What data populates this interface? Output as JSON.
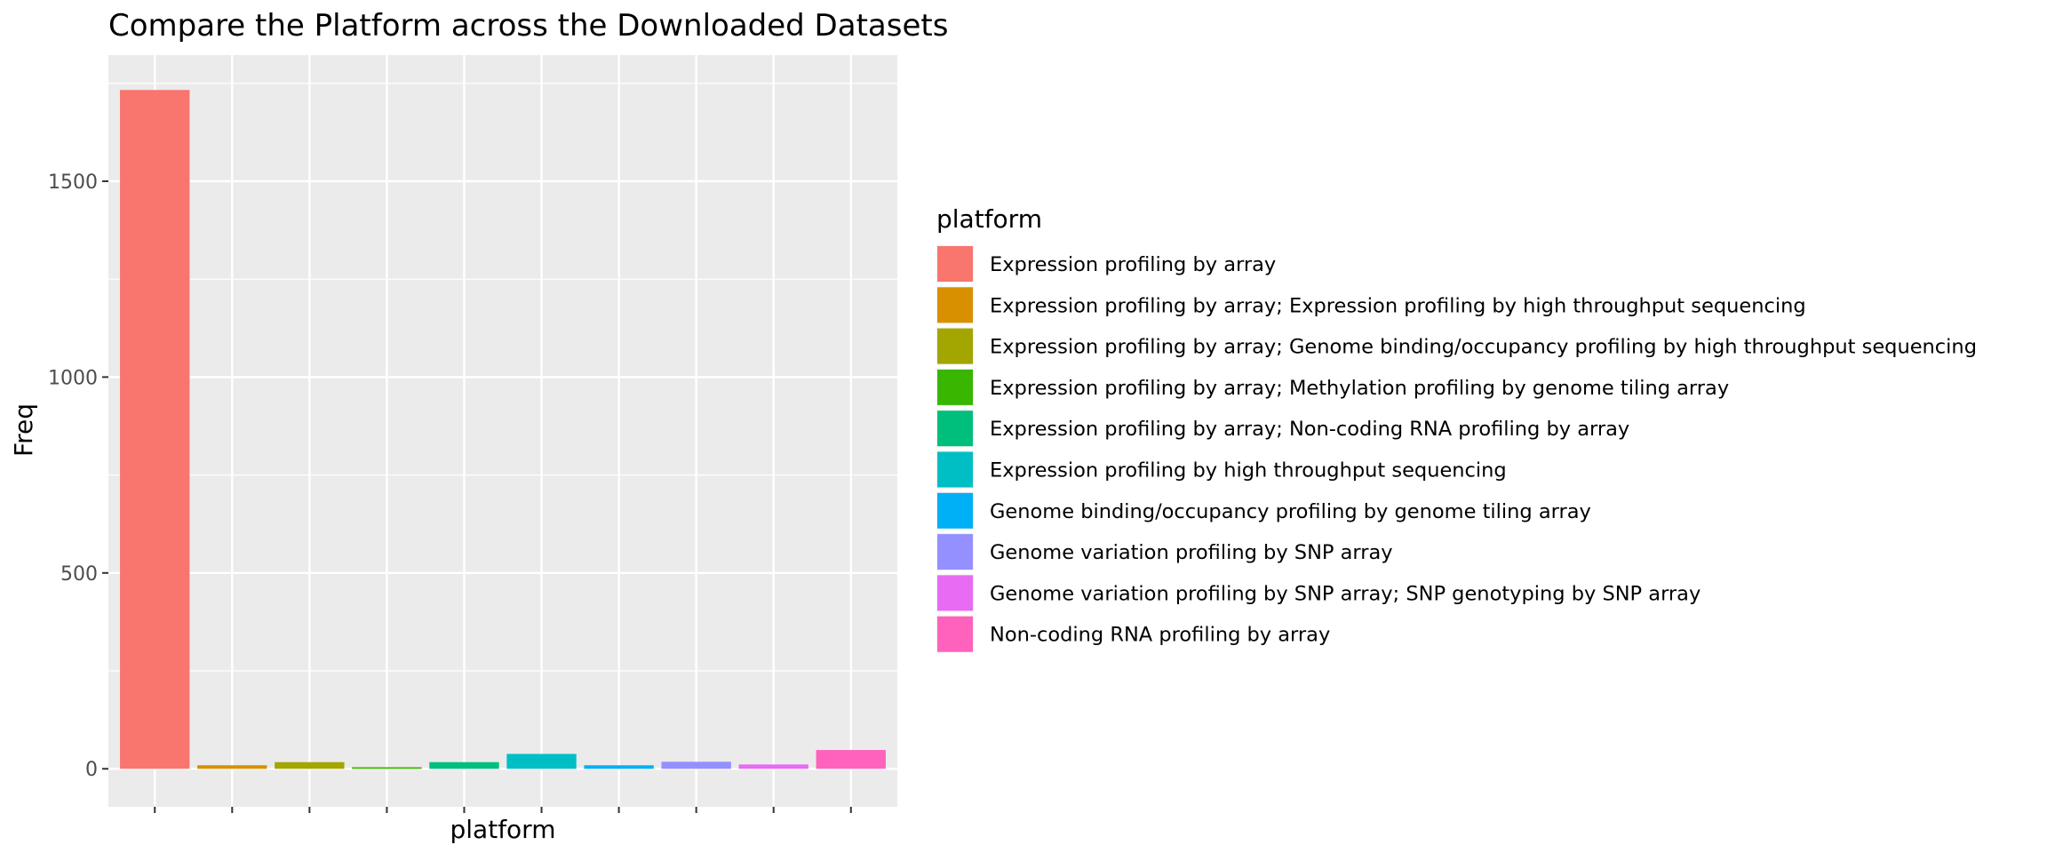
{
  "chart_data": {
    "type": "bar",
    "title": "Compare the Platform across the Downloaded Datasets",
    "xlabel": "platform",
    "ylabel": "Freq",
    "ylim": [
      -97,
      1822
    ],
    "yticks": [
      0,
      500,
      1000,
      1500
    ],
    "grid": true,
    "legend_title": "platform",
    "legend_position": "right",
    "categories": [
      "Expression profiling by array",
      "Expression profiling by array; Expression profiling by high throughput sequencing",
      "Expression profiling by array; Genome binding/occupancy profiling by high throughput sequencing",
      "Expression profiling by array; Methylation profiling by genome tiling array",
      "Expression profiling by array; Non-coding RNA profiling by array",
      "Expression profiling by high throughput sequencing",
      "Genome binding/occupancy profiling by genome tiling array",
      "Genome variation profiling by SNP array",
      "Genome variation profiling by SNP array; SNP genotyping by SNP array",
      "Non-coding RNA profiling by array"
    ],
    "values": [
      1733,
      9,
      17,
      4,
      17,
      38,
      9,
      18,
      11,
      48
    ],
    "colors": [
      "#F8766D",
      "#D89000",
      "#A3A500",
      "#39B600",
      "#00BF7D",
      "#00BFC4",
      "#00B0F6",
      "#9590FF",
      "#E76BF3",
      "#FF62BC"
    ]
  }
}
